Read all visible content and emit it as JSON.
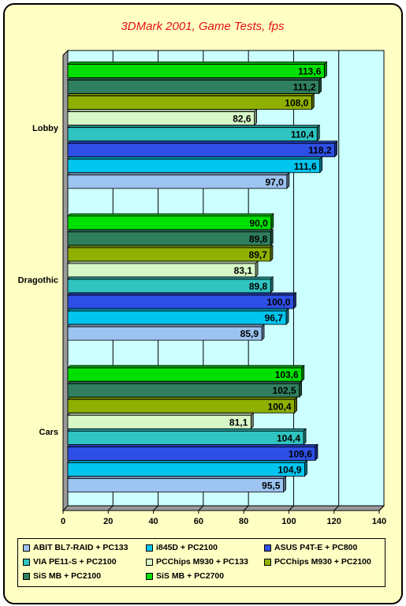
{
  "chart_data": {
    "type": "bar",
    "orientation": "horizontal",
    "title": "3DMark 2001, Game Tests, fps",
    "categories": [
      "Lobby",
      "Dragothic",
      "Cars"
    ],
    "xlim": [
      0,
      140
    ],
    "xticks": [
      0,
      20,
      40,
      60,
      80,
      100,
      120,
      140
    ],
    "grid": true,
    "legend_position": "bottom",
    "series": [
      {
        "name": "SiS MB + PC2700",
        "color": "#00e000",
        "values": [
          113.6,
          90.0,
          103.6
        ],
        "labels": [
          "113,6",
          "90,0",
          "103,6"
        ]
      },
      {
        "name": "SiS MB + PC2100",
        "color": "#2f7f5e",
        "values": [
          111.2,
          89.8,
          102.5
        ],
        "labels": [
          "111,2",
          "89,8",
          "102,5"
        ]
      },
      {
        "name": "PCChips M930 + PC2100",
        "color": "#8fb000",
        "values": [
          108.0,
          89.7,
          100.4
        ],
        "labels": [
          "108,0",
          "89,7",
          "100,4"
        ]
      },
      {
        "name": "PCChips M930 + PC133",
        "color": "#d8f7c7",
        "values": [
          82.6,
          83.1,
          81.1
        ],
        "labels": [
          "82,6",
          "83,1",
          "81,1"
        ]
      },
      {
        "name": "VIA PE11-S + PC2100",
        "color": "#2fc4c0",
        "values": [
          110.4,
          89.8,
          104.4
        ],
        "labels": [
          "110,4",
          "89,8",
          "104,4"
        ]
      },
      {
        "name": "ASUS P4T-E + PC800",
        "color": "#2e4fe6",
        "values": [
          118.2,
          100.0,
          109.6
        ],
        "labels": [
          "118,2",
          "100,0",
          "109,6"
        ]
      },
      {
        "name": "i845D + PC2100",
        "color": "#00c6ef",
        "values": [
          111.6,
          96.7,
          104.9
        ],
        "labels": [
          "111,6",
          "96,7",
          "104,9"
        ]
      },
      {
        "name": "ABIT BL7-RAID + PC133",
        "color": "#9dc3f0",
        "values": [
          97.0,
          85.9,
          95.5
        ],
        "labels": [
          "97,0",
          "85,9",
          "95,5"
        ]
      }
    ],
    "legend_order": [
      "ABIT BL7-RAID + PC133",
      "i845D + PC2100",
      "ASUS P4T-E + PC800",
      "VIA PE11-S + PC2100",
      "PCChips M930 + PC133",
      "PCChips M930 + PC2100",
      "SiS MB + PC2100",
      "SiS MB + PC2700"
    ],
    "colors": {
      "plot_background": "#ccffff",
      "page_background": "#ffffc4",
      "title": "#e31212"
    }
  }
}
